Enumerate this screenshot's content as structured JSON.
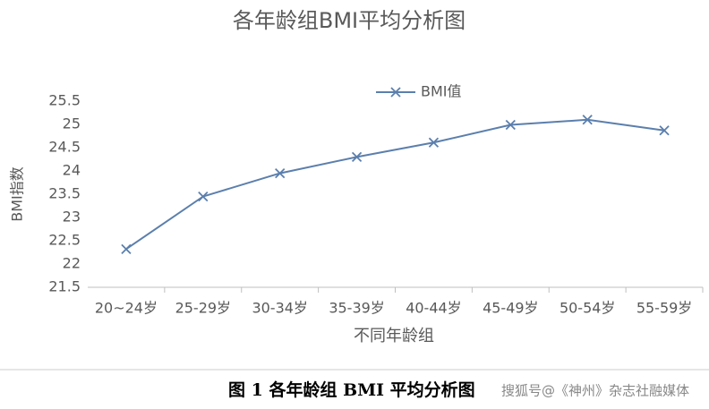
{
  "chart_data": {
    "type": "line",
    "title": "各年龄组BMI平均分析图",
    "categories": [
      "20~24岁",
      "25-29岁",
      "30-34岁",
      "35-39岁",
      "40-44岁",
      "45-49岁",
      "50-54岁",
      "55-59岁"
    ],
    "series": [
      {
        "name": "BMI值",
        "color": "#5b7fad",
        "values": [
          22.32,
          23.45,
          23.95,
          24.3,
          24.61,
          24.99,
          25.1,
          24.87
        ]
      }
    ],
    "ylim": [
      21.5,
      25.5
    ],
    "yticks": [
      21.5,
      22,
      22.5,
      23,
      23.5,
      24,
      24.5,
      25,
      25.5
    ],
    "ylabel": "BMI指数",
    "xlabel": "不同年龄组",
    "legend": "top",
    "grid": false
  },
  "caption": "图 1 各年龄组 BMI 平均分析图",
  "watermark": "搜狐号@《神州》杂志社融媒体"
}
